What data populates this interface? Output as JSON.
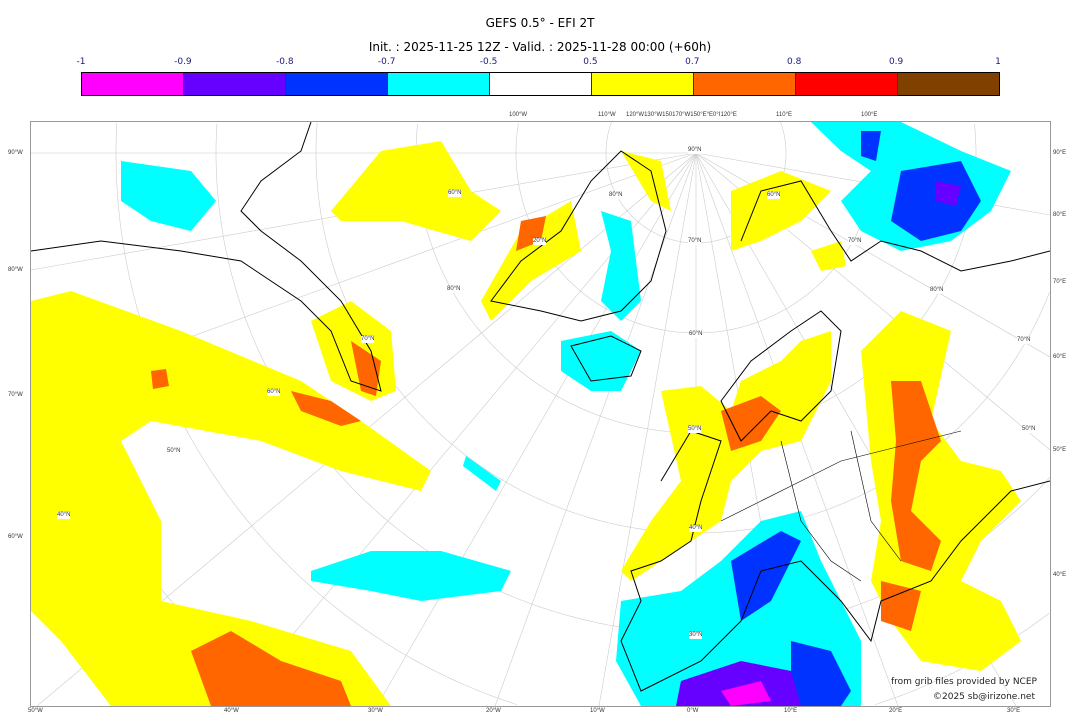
{
  "title": "GEFS 0.5° - EFI 2T",
  "subtitle": "Init. : 2025-11-25 12Z - Valid. : 2025-11-28 00:00 (+60h)",
  "colorbar": {
    "ticks": [
      "-1",
      "-0.9",
      "-0.8",
      "-0.7",
      "-0.5",
      "0.5",
      "0.7",
      "0.8",
      "0.9",
      "1"
    ],
    "colors": [
      "#ff00ff",
      "#6600ff",
      "#0033ff",
      "#00ffff",
      "#ffffff",
      "#ffff00",
      "#ff6600",
      "#ff0000",
      "#804000"
    ]
  },
  "axes": {
    "left": [
      "90°W",
      "80°W",
      "70°W",
      "60°W"
    ],
    "right": [
      "90°E",
      "80°E",
      "70°E",
      "60°E",
      "50°E",
      "40°E"
    ],
    "bottom": [
      "50°W",
      "40°W",
      "30°W",
      "20°W",
      "10°W",
      "0°W",
      "10°E",
      "20°E",
      "30°E"
    ],
    "top": [
      "100°W",
      "110°W",
      "120°W130°W150170°W150°E°E0°I120°E",
      "110°E",
      "100°E"
    ]
  },
  "map_labels": [
    "90°N",
    "80°N",
    "70°N",
    "60°N",
    "50°N",
    "40°N",
    "30°N",
    "20°N",
    "80°N",
    "70°N",
    "60°N",
    "50°N",
    "40°N",
    "60°N",
    "70°N",
    "80°N",
    "70°N",
    "60°N",
    "50°N"
  ],
  "credits": {
    "source": "from grib files provided by NCEP",
    "copyright": "©2025 sb@irizone.net"
  }
}
